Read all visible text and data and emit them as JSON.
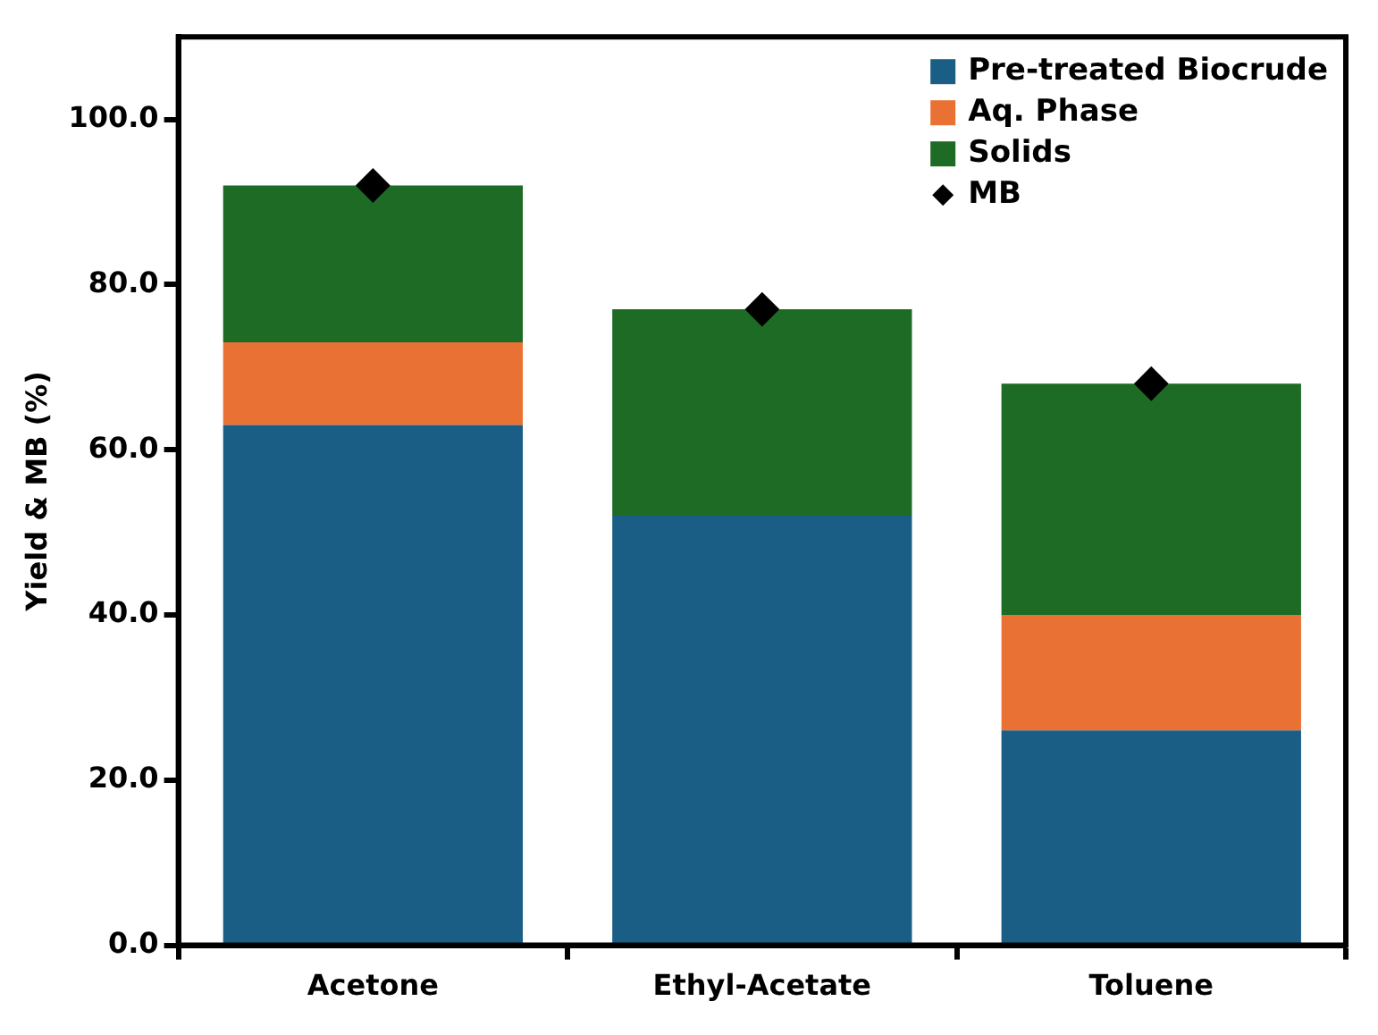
{
  "chart_data": {
    "type": "bar",
    "stacked": true,
    "ylabel": "Yield & MB (%)",
    "categories": [
      "Acetone",
      "Ethyl-Acetate",
      "Toluene"
    ],
    "series": [
      {
        "name": "Pre-treated Biocrude",
        "color": "#1a5e86",
        "values": [
          63,
          52,
          26
        ]
      },
      {
        "name": "Aq. Phase",
        "color": "#ea7134",
        "values": [
          10,
          0,
          14
        ]
      },
      {
        "name": "Solids",
        "color": "#1e6b25",
        "values": [
          19,
          25,
          28
        ]
      },
      {
        "name": "MB",
        "type": "scatter",
        "marker": "diamond",
        "color": "#000000",
        "values": [
          92,
          77,
          68
        ]
      }
    ],
    "ylim": [
      0,
      110
    ],
    "yticks": [
      {
        "value": 0,
        "label": "0.0"
      },
      {
        "value": 20,
        "label": "20.0"
      },
      {
        "value": 40,
        "label": "40.0"
      },
      {
        "value": 60,
        "label": "60.0"
      },
      {
        "value": 80,
        "label": "80.0"
      },
      {
        "value": 100,
        "label": "100.0"
      }
    ],
    "grid": false,
    "legend": "top right"
  }
}
